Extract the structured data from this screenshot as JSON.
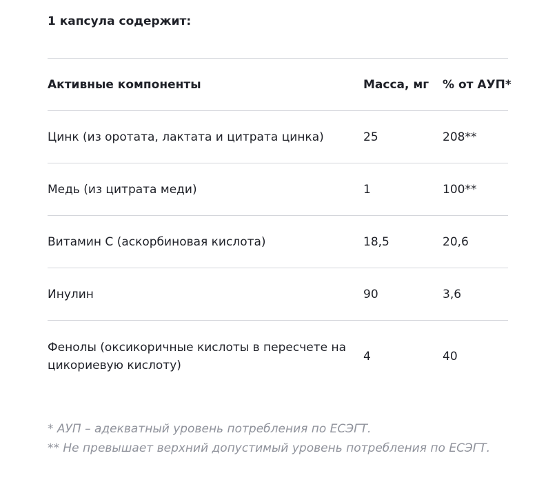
{
  "heading": "1 капсула содержит:",
  "table": {
    "headers": [
      "Активные компоненты",
      "Масса, мг",
      "% от АУП*"
    ],
    "rows": [
      [
        "Цинк (из оротата, лактата и цитрата цинка)",
        "25",
        "208**"
      ],
      [
        "Медь (из цитрата меди)",
        "1",
        "100**"
      ],
      [
        "Витамин С (аскорбиновая кислота)",
        "18,5",
        "20,6"
      ],
      [
        "Инулин",
        "90",
        "3,6"
      ],
      [
        "Фенолы (оксикоричные кислоты в пересчете на цикориевую кислоту)",
        "4",
        "40"
      ]
    ]
  },
  "footnotes": [
    "* АУП – адекватный уровень потребления по ЕСЭГТ.",
    "** Не превышает верхний допустимый уровень потребления по ЕСЭГТ."
  ]
}
